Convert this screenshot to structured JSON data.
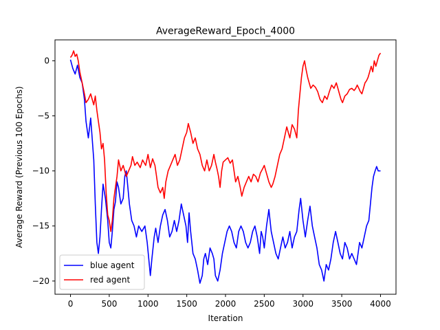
{
  "chart_data": {
    "type": "line",
    "title": "AverageReward_Epoch_4000",
    "xlabel": "Iteration",
    "ylabel": "Average Reward (Previous 100 Epochs)",
    "xlim": [
      -200,
      4200
    ],
    "ylim": [
      -21.2,
      1.9
    ],
    "xticks": [
      0,
      500,
      1000,
      1500,
      2000,
      2500,
      3000,
      3500,
      4000
    ],
    "yticks": [
      0,
      -5,
      -10,
      -15,
      -20
    ],
    "grid": false,
    "legend_position": "lower-left",
    "series": [
      {
        "name": "blue agent",
        "color": "#0000ff",
        "points": [
          [
            0,
            0.1
          ],
          [
            30,
            -0.7
          ],
          [
            60,
            -1.2
          ],
          [
            90,
            -0.4
          ],
          [
            120,
            -1.5
          ],
          [
            150,
            -2.0
          ],
          [
            180,
            -3.5
          ],
          [
            200,
            -5.5
          ],
          [
            230,
            -7.0
          ],
          [
            260,
            -5.2
          ],
          [
            290,
            -8.0
          ],
          [
            300,
            -9.0
          ],
          [
            320,
            -13.0
          ],
          [
            340,
            -16.5
          ],
          [
            360,
            -17.5
          ],
          [
            380,
            -16.0
          ],
          [
            400,
            -13.5
          ],
          [
            420,
            -11.2
          ],
          [
            450,
            -12.5
          ],
          [
            480,
            -14.5
          ],
          [
            500,
            -16.5
          ],
          [
            520,
            -17.0
          ],
          [
            540,
            -15.5
          ],
          [
            560,
            -13.5
          ],
          [
            580,
            -12.8
          ],
          [
            600,
            -11.0
          ],
          [
            620,
            -11.5
          ],
          [
            650,
            -13.0
          ],
          [
            680,
            -12.5
          ],
          [
            700,
            -10.5
          ],
          [
            720,
            -10.0
          ],
          [
            740,
            -11.5
          ],
          [
            760,
            -13.0
          ],
          [
            790,
            -14.5
          ],
          [
            820,
            -15.0
          ],
          [
            850,
            -16.0
          ],
          [
            880,
            -15.0
          ],
          [
            920,
            -15.5
          ],
          [
            960,
            -15.0
          ],
          [
            990,
            -16.5
          ],
          [
            1010,
            -18.0
          ],
          [
            1030,
            -19.5
          ],
          [
            1050,
            -18.0
          ],
          [
            1080,
            -16.0
          ],
          [
            1100,
            -15.2
          ],
          [
            1130,
            -16.5
          ],
          [
            1160,
            -15.0
          ],
          [
            1190,
            -14.0
          ],
          [
            1220,
            -13.5
          ],
          [
            1250,
            -14.5
          ],
          [
            1280,
            -16.0
          ],
          [
            1310,
            -15.5
          ],
          [
            1340,
            -14.5
          ],
          [
            1370,
            -15.5
          ],
          [
            1400,
            -14.5
          ],
          [
            1430,
            -13.0
          ],
          [
            1460,
            -14.0
          ],
          [
            1490,
            -15.0
          ],
          [
            1510,
            -16.5
          ],
          [
            1530,
            -13.8
          ],
          [
            1550,
            -15.5
          ],
          [
            1580,
            -17.5
          ],
          [
            1610,
            -18.0
          ],
          [
            1640,
            -19.0
          ],
          [
            1670,
            -20.2
          ],
          [
            1700,
            -19.5
          ],
          [
            1720,
            -18.0
          ],
          [
            1740,
            -17.5
          ],
          [
            1770,
            -18.5
          ],
          [
            1800,
            -17.0
          ],
          [
            1830,
            -17.5
          ],
          [
            1850,
            -18.0
          ],
          [
            1870,
            -19.5
          ],
          [
            1900,
            -20.0
          ],
          [
            1930,
            -19.0
          ],
          [
            1960,
            -17.5
          ],
          [
            1990,
            -16.5
          ],
          [
            2020,
            -15.5
          ],
          [
            2050,
            -15.0
          ],
          [
            2080,
            -15.5
          ],
          [
            2110,
            -16.5
          ],
          [
            2140,
            -17.0
          ],
          [
            2170,
            -15.5
          ],
          [
            2200,
            -15.0
          ],
          [
            2230,
            -15.5
          ],
          [
            2260,
            -16.5
          ],
          [
            2290,
            -17.0
          ],
          [
            2320,
            -16.5
          ],
          [
            2350,
            -15.5
          ],
          [
            2380,
            -15.0
          ],
          [
            2410,
            -16.0
          ],
          [
            2440,
            -17.5
          ],
          [
            2460,
            -15.5
          ],
          [
            2480,
            -16.0
          ],
          [
            2500,
            -17.0
          ],
          [
            2530,
            -15.0
          ],
          [
            2560,
            -13.5
          ],
          [
            2590,
            -15.5
          ],
          [
            2620,
            -16.5
          ],
          [
            2650,
            -17.5
          ],
          [
            2680,
            -18.0
          ],
          [
            2710,
            -17.0
          ],
          [
            2740,
            -16.0
          ],
          [
            2770,
            -17.0
          ],
          [
            2800,
            -16.5
          ],
          [
            2830,
            -15.5
          ],
          [
            2860,
            -17.0
          ],
          [
            2890,
            -16.0
          ],
          [
            2920,
            -15.5
          ],
          [
            2950,
            -13.5
          ],
          [
            2970,
            -12.5
          ],
          [
            3000,
            -14.5
          ],
          [
            3030,
            -16.0
          ],
          [
            3060,
            -14.5
          ],
          [
            3090,
            -13.2
          ],
          [
            3120,
            -15.0
          ],
          [
            3150,
            -16.0
          ],
          [
            3180,
            -17.0
          ],
          [
            3210,
            -18.5
          ],
          [
            3240,
            -19.0
          ],
          [
            3270,
            -20.0
          ],
          [
            3300,
            -18.5
          ],
          [
            3330,
            -19.0
          ],
          [
            3360,
            -18.0
          ],
          [
            3390,
            -16.5
          ],
          [
            3420,
            -15.5
          ],
          [
            3450,
            -16.5
          ],
          [
            3480,
            -17.5
          ],
          [
            3510,
            -18.0
          ],
          [
            3540,
            -16.5
          ],
          [
            3570,
            -17.0
          ],
          [
            3600,
            -18.0
          ],
          [
            3630,
            -17.5
          ],
          [
            3660,
            -18.0
          ],
          [
            3690,
            -18.5
          ],
          [
            3710,
            -17.5
          ],
          [
            3730,
            -16.5
          ],
          [
            3760,
            -17.0
          ],
          [
            3790,
            -16.0
          ],
          [
            3820,
            -15.0
          ],
          [
            3850,
            -14.5
          ],
          [
            3870,
            -13.0
          ],
          [
            3890,
            -11.5
          ],
          [
            3910,
            -10.5
          ],
          [
            3930,
            -10.0
          ],
          [
            3950,
            -9.6
          ],
          [
            3970,
            -10.0
          ],
          [
            4000,
            -10.0
          ]
        ]
      },
      {
        "name": "red agent",
        "color": "#ff0000",
        "points": [
          [
            0,
            0.3
          ],
          [
            20,
            0.5
          ],
          [
            40,
            0.9
          ],
          [
            60,
            0.4
          ],
          [
            80,
            0.6
          ],
          [
            100,
            0.0
          ],
          [
            120,
            -1.0
          ],
          [
            150,
            -2.0
          ],
          [
            180,
            -3.0
          ],
          [
            200,
            -3.8
          ],
          [
            230,
            -3.5
          ],
          [
            260,
            -3.0
          ],
          [
            280,
            -3.5
          ],
          [
            300,
            -4.0
          ],
          [
            320,
            -3.2
          ],
          [
            340,
            -4.5
          ],
          [
            360,
            -5.5
          ],
          [
            380,
            -6.5
          ],
          [
            400,
            -8.0
          ],
          [
            420,
            -7.5
          ],
          [
            440,
            -9.0
          ],
          [
            460,
            -12.0
          ],
          [
            480,
            -14.0
          ],
          [
            500,
            -14.5
          ],
          [
            520,
            -15.5
          ],
          [
            540,
            -14.5
          ],
          [
            560,
            -12.5
          ],
          [
            580,
            -11.5
          ],
          [
            600,
            -10.5
          ],
          [
            620,
            -9.0
          ],
          [
            650,
            -10.0
          ],
          [
            680,
            -9.5
          ],
          [
            720,
            -10.5
          ],
          [
            750,
            -10.0
          ],
          [
            780,
            -9.5
          ],
          [
            800,
            -8.7
          ],
          [
            830,
            -9.5
          ],
          [
            860,
            -9.2
          ],
          [
            900,
            -9.7
          ],
          [
            930,
            -9.0
          ],
          [
            970,
            -9.5
          ],
          [
            1000,
            -8.5
          ],
          [
            1030,
            -9.7
          ],
          [
            1060,
            -8.9
          ],
          [
            1090,
            -9.5
          ],
          [
            1110,
            -10.5
          ],
          [
            1130,
            -11.5
          ],
          [
            1160,
            -12.0
          ],
          [
            1190,
            -11.5
          ],
          [
            1210,
            -12.5
          ],
          [
            1230,
            -11.0
          ],
          [
            1260,
            -10.0
          ],
          [
            1290,
            -9.5
          ],
          [
            1320,
            -9.0
          ],
          [
            1350,
            -8.5
          ],
          [
            1380,
            -9.5
          ],
          [
            1410,
            -9.0
          ],
          [
            1440,
            -8.0
          ],
          [
            1470,
            -7.0
          ],
          [
            1500,
            -6.5
          ],
          [
            1520,
            -5.7
          ],
          [
            1550,
            -6.5
          ],
          [
            1580,
            -7.5
          ],
          [
            1610,
            -7.0
          ],
          [
            1640,
            -8.0
          ],
          [
            1670,
            -8.5
          ],
          [
            1700,
            -9.5
          ],
          [
            1730,
            -10.0
          ],
          [
            1760,
            -9.0
          ],
          [
            1790,
            -10.0
          ],
          [
            1820,
            -9.5
          ],
          [
            1850,
            -8.5
          ],
          [
            1870,
            -9.2
          ],
          [
            1890,
            -9.8
          ],
          [
            1910,
            -10.5
          ],
          [
            1930,
            -11.5
          ],
          [
            1950,
            -10.0
          ],
          [
            1970,
            -9.2
          ],
          [
            2000,
            -9.0
          ],
          [
            2030,
            -8.8
          ],
          [
            2060,
            -9.3
          ],
          [
            2090,
            -9.0
          ],
          [
            2110,
            -10.0
          ],
          [
            2130,
            -11.0
          ],
          [
            2160,
            -10.5
          ],
          [
            2190,
            -11.5
          ],
          [
            2210,
            -12.3
          ],
          [
            2240,
            -11.5
          ],
          [
            2270,
            -11.0
          ],
          [
            2300,
            -10.5
          ],
          [
            2330,
            -11.0
          ],
          [
            2360,
            -10.3
          ],
          [
            2390,
            -10.5
          ],
          [
            2420,
            -11.0
          ],
          [
            2450,
            -10.2
          ],
          [
            2480,
            -9.8
          ],
          [
            2500,
            -9.5
          ],
          [
            2520,
            -10.0
          ],
          [
            2540,
            -10.5
          ],
          [
            2560,
            -11.0
          ],
          [
            2590,
            -11.5
          ],
          [
            2610,
            -11.2
          ],
          [
            2640,
            -10.5
          ],
          [
            2670,
            -9.5
          ],
          [
            2700,
            -8.5
          ],
          [
            2730,
            -8.0
          ],
          [
            2760,
            -7.0
          ],
          [
            2790,
            -6.0
          ],
          [
            2810,
            -6.5
          ],
          [
            2830,
            -7.0
          ],
          [
            2860,
            -5.8
          ],
          [
            2890,
            -6.2
          ],
          [
            2920,
            -7.0
          ],
          [
            2940,
            -4.5
          ],
          [
            2960,
            -3.0
          ],
          [
            2980,
            -1.5
          ],
          [
            3000,
            -0.5
          ],
          [
            3020,
            0.0
          ],
          [
            3040,
            -0.8
          ],
          [
            3060,
            -1.5
          ],
          [
            3080,
            -2.0
          ],
          [
            3100,
            -2.5
          ],
          [
            3130,
            -2.2
          ],
          [
            3160,
            -2.4
          ],
          [
            3190,
            -2.8
          ],
          [
            3220,
            -3.5
          ],
          [
            3250,
            -3.8
          ],
          [
            3280,
            -3.2
          ],
          [
            3310,
            -3.5
          ],
          [
            3340,
            -2.8
          ],
          [
            3370,
            -2.2
          ],
          [
            3400,
            -2.5
          ],
          [
            3430,
            -2.0
          ],
          [
            3450,
            -2.5
          ],
          [
            3470,
            -3.0
          ],
          [
            3490,
            -3.5
          ],
          [
            3510,
            -3.8
          ],
          [
            3540,
            -3.2
          ],
          [
            3570,
            -3.0
          ],
          [
            3600,
            -2.6
          ],
          [
            3630,
            -2.5
          ],
          [
            3660,
            -2.7
          ],
          [
            3680,
            -2.5
          ],
          [
            3700,
            -2.2
          ],
          [
            3720,
            -2.5
          ],
          [
            3740,
            -2.8
          ],
          [
            3760,
            -3.0
          ],
          [
            3780,
            -2.5
          ],
          [
            3800,
            -2.0
          ],
          [
            3820,
            -1.8
          ],
          [
            3840,
            -1.5
          ],
          [
            3860,
            -1.0
          ],
          [
            3880,
            -0.5
          ],
          [
            3900,
            -1.0
          ],
          [
            3920,
            0.0
          ],
          [
            3940,
            -0.5
          ],
          [
            3960,
            0.0
          ],
          [
            3980,
            0.5
          ],
          [
            4000,
            0.7
          ]
        ]
      }
    ]
  }
}
